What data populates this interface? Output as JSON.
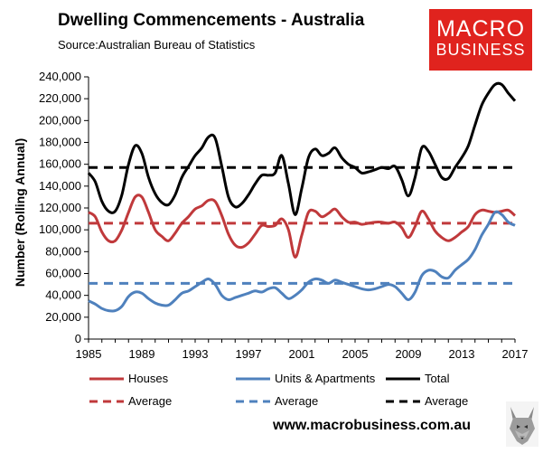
{
  "header": {
    "title": "Dwelling Commencements - Australia",
    "source": "Source:Australian Bureau of Statistics"
  },
  "logo": {
    "line1": "MACRO",
    "line2": "BUSINESS"
  },
  "footer": {
    "website": "www.macrobusiness.com.au"
  },
  "chart_data": {
    "type": "line",
    "ylabel": "Number (Rolling Annual)",
    "xlabel": "",
    "ylim": [
      0,
      240000
    ],
    "xlim": [
      1985,
      2017
    ],
    "y_ticks": [
      "0",
      "20,000",
      "40,000",
      "60,000",
      "80,000",
      "100,000",
      "120,000",
      "140,000",
      "160,000",
      "180,000",
      "200,000",
      "220,000",
      "240,000"
    ],
    "x_ticks": [
      "1985",
      "1989",
      "1993",
      "1997",
      "2001",
      "2005",
      "2009",
      "2013",
      "2017"
    ],
    "grid": false,
    "legend_placement": "bottom",
    "series": [
      {
        "name": "Houses",
        "color": "#c0393b",
        "x": [
          1985.0,
          1985.5,
          1986.0,
          1986.5,
          1987.0,
          1987.5,
          1988.0,
          1988.5,
          1989.0,
          1989.5,
          1990.0,
          1990.5,
          1991.0,
          1991.5,
          1992.0,
          1992.5,
          1993.0,
          1993.5,
          1994.0,
          1994.5,
          1995.0,
          1995.5,
          1996.0,
          1996.5,
          1997.0,
          1997.5,
          1998.0,
          1998.5,
          1999.0,
          1999.5,
          2000.0,
          2000.5,
          2001.0,
          2001.5,
          2002.0,
          2002.5,
          2003.0,
          2003.5,
          2004.0,
          2004.5,
          2005.0,
          2005.5,
          2006.0,
          2006.5,
          2007.0,
          2007.5,
          2008.0,
          2008.5,
          2009.0,
          2009.5,
          2010.0,
          2010.5,
          2011.0,
          2011.5,
          2012.0,
          2012.5,
          2013.0,
          2013.5,
          2014.0,
          2014.5,
          2015.0,
          2015.5,
          2016.0,
          2016.5,
          2017.0
        ],
        "values": [
          116000,
          112000,
          98000,
          90000,
          90000,
          100000,
          116000,
          130000,
          130000,
          116000,
          100000,
          94000,
          90000,
          97000,
          106000,
          112000,
          119000,
          122000,
          127000,
          126000,
          113000,
          96000,
          86000,
          84000,
          88000,
          96000,
          104000,
          103000,
          104000,
          110000,
          100000,
          75000,
          95000,
          116000,
          117000,
          112000,
          115000,
          119000,
          112000,
          107000,
          107000,
          105000,
          106000,
          107000,
          107000,
          106000,
          107000,
          102000,
          93000,
          103000,
          117000,
          110000,
          99000,
          93000,
          90000,
          93000,
          98000,
          103000,
          114000,
          118000,
          117000,
          116000,
          117000,
          118000,
          113000
        ]
      },
      {
        "name": "Units & Apartments",
        "color": "#4f81bd",
        "x": [
          1985.0,
          1985.5,
          1986.0,
          1986.5,
          1987.0,
          1987.5,
          1988.0,
          1988.5,
          1989.0,
          1989.5,
          1990.0,
          1990.5,
          1991.0,
          1991.5,
          1992.0,
          1992.5,
          1993.0,
          1993.5,
          1994.0,
          1994.5,
          1995.0,
          1995.5,
          1996.0,
          1996.5,
          1997.0,
          1997.5,
          1998.0,
          1998.5,
          1999.0,
          1999.5,
          2000.0,
          2000.5,
          2001.0,
          2001.5,
          2002.0,
          2002.5,
          2003.0,
          2003.5,
          2004.0,
          2004.5,
          2005.0,
          2005.5,
          2006.0,
          2006.5,
          2007.0,
          2007.5,
          2008.0,
          2008.5,
          2009.0,
          2009.5,
          2010.0,
          2010.5,
          2011.0,
          2011.5,
          2012.0,
          2012.5,
          2013.0,
          2013.5,
          2014.0,
          2014.5,
          2015.0,
          2015.5,
          2016.0,
          2016.5,
          2017.0
        ],
        "values": [
          35000,
          32000,
          28000,
          26000,
          26000,
          30000,
          39000,
          43000,
          42000,
          37000,
          33000,
          31000,
          31000,
          36000,
          42000,
          44000,
          48000,
          52000,
          55000,
          50000,
          40000,
          36000,
          38000,
          40000,
          42000,
          44000,
          43000,
          46000,
          47000,
          42000,
          37000,
          40000,
          45000,
          52000,
          55000,
          54000,
          51000,
          54000,
          52000,
          50000,
          48000,
          46000,
          45000,
          46000,
          48000,
          50000,
          48000,
          42000,
          36000,
          43000,
          58000,
          63000,
          62000,
          57000,
          56000,
          63000,
          68000,
          73000,
          82000,
          95000,
          105000,
          116000,
          114000,
          107000,
          104000
        ]
      },
      {
        "name": "Total",
        "color": "#000000",
        "x": [
          1985.0,
          1985.5,
          1986.0,
          1986.5,
          1987.0,
          1987.5,
          1988.0,
          1988.5,
          1989.0,
          1989.5,
          1990.0,
          1990.5,
          1991.0,
          1991.5,
          1992.0,
          1992.5,
          1993.0,
          1993.5,
          1994.0,
          1994.5,
          1995.0,
          1995.5,
          1996.0,
          1996.5,
          1997.0,
          1997.5,
          1998.0,
          1998.5,
          1999.0,
          1999.5,
          2000.0,
          2000.5,
          2001.0,
          2001.5,
          2002.0,
          2002.5,
          2003.0,
          2003.5,
          2004.0,
          2004.5,
          2005.0,
          2005.5,
          2006.0,
          2006.5,
          2007.0,
          2007.5,
          2008.0,
          2008.5,
          2009.0,
          2009.5,
          2010.0,
          2010.5,
          2011.0,
          2011.5,
          2012.0,
          2012.5,
          2013.0,
          2013.5,
          2014.0,
          2014.5,
          2015.0,
          2015.5,
          2016.0,
          2016.5,
          2017.0
        ],
        "values": [
          152000,
          144000,
          126000,
          117000,
          117000,
          132000,
          160000,
          177000,
          170000,
          148000,
          133000,
          125000,
          123000,
          132000,
          148000,
          158000,
          168000,
          175000,
          185000,
          184000,
          158000,
          130000,
          121000,
          124000,
          132000,
          142000,
          150000,
          150000,
          152000,
          168000,
          142000,
          114000,
          138000,
          166000,
          174000,
          168000,
          170000,
          175000,
          166000,
          160000,
          157000,
          152000,
          153000,
          155000,
          157000,
          156000,
          158000,
          146000,
          131000,
          148000,
          175000,
          172000,
          160000,
          148000,
          147000,
          157000,
          166000,
          177000,
          196000,
          214000,
          225000,
          233000,
          233000,
          225000,
          218000
        ]
      }
    ],
    "averages": [
      {
        "name": "Average",
        "color": "#c0393b",
        "value": 106000
      },
      {
        "name": "Average",
        "color": "#4f81bd",
        "value": 51000
      },
      {
        "name": "Average",
        "color": "#000000",
        "value": 157000
      }
    ]
  }
}
